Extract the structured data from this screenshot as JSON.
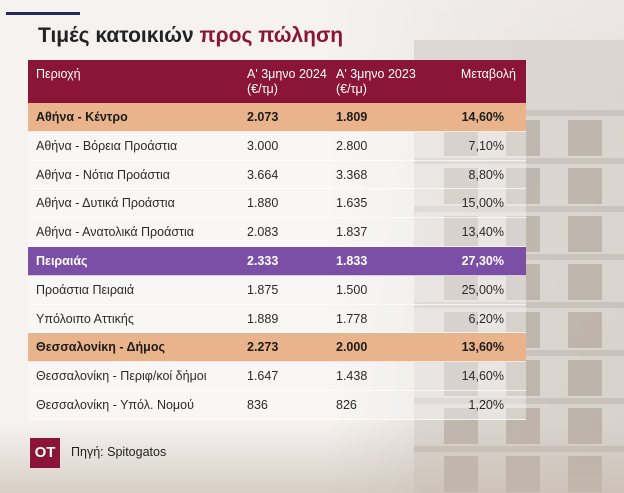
{
  "title_main": "Τιμές κατοικιών",
  "title_accent": "προς πώληση",
  "colors": {
    "header_bg": "#8a1538",
    "highlight_orange": "#e9b48c",
    "highlight_purple": "#7c4fa6",
    "title_accent": "#8a1538"
  },
  "source": "Πηγή: Spitogatos",
  "logo_text": "ΟΤ",
  "chart_data": {
    "type": "table",
    "title": "Τιμές κατοικιών προς πώληση",
    "columns": [
      "Περιοχή",
      "Α' 3μηνο 2024 (€/τμ)",
      "Α' 3μηνο 2023 (€/τμ)",
      "Μεταβολή"
    ],
    "header": {
      "region": "Περιοχή",
      "q1_2024_line1": "Α' 3μηνο 2024",
      "q1_2024_line2": "(€/τμ)",
      "q1_2023_line1": "Α' 3μηνο 2023",
      "q1_2023_line2": "(€/τμ)",
      "change": "Μεταβολή"
    },
    "rows": [
      {
        "region": "Αθήνα - Κέντρο",
        "q1_2024": "2.073",
        "q1_2023": "1.809",
        "change": "14,60%",
        "highlight": "orange"
      },
      {
        "region": "Αθήνα - Βόρεια Προάστια",
        "q1_2024": "3.000",
        "q1_2023": "2.800",
        "change": "7,10%",
        "highlight": "none"
      },
      {
        "region": "Αθήνα - Νότια Προάστια",
        "q1_2024": "3.664",
        "q1_2023": "3.368",
        "change": "8,80%",
        "highlight": "none"
      },
      {
        "region": "Αθήνα - Δυτικά Προάστια",
        "q1_2024": "1.880",
        "q1_2023": "1.635",
        "change": "15,00%",
        "highlight": "none"
      },
      {
        "region": "Αθήνα - Ανατολικά Προάστια",
        "q1_2024": "2.083",
        "q1_2023": "1.837",
        "change": "13,40%",
        "highlight": "none"
      },
      {
        "region": "Πειραιάς",
        "q1_2024": "2.333",
        "q1_2023": "1.833",
        "change": "27,30%",
        "highlight": "purple"
      },
      {
        "region": "Προάστια Πειραιά",
        "q1_2024": "1.875",
        "q1_2023": "1.500",
        "change": "25,00%",
        "highlight": "none"
      },
      {
        "region": "Υπόλοιπο Αττικής",
        "q1_2024": "1.889",
        "q1_2023": "1.778",
        "change": "6,20%",
        "highlight": "none"
      },
      {
        "region": "Θεσσαλονίκη - Δήμος",
        "q1_2024": "2.273",
        "q1_2023": "2.000",
        "change": "13,60%",
        "highlight": "orange"
      },
      {
        "region": "Θεσσαλονίκη - Περιφ/κοί δήμοι",
        "q1_2024": "1.647",
        "q1_2023": "1.438",
        "change": "14,60%",
        "highlight": "none"
      },
      {
        "region": "Θεσσαλονίκη - Υπόλ. Νομού",
        "q1_2024": "836",
        "q1_2023": "826",
        "change": "1,20%",
        "highlight": "none"
      }
    ]
  }
}
